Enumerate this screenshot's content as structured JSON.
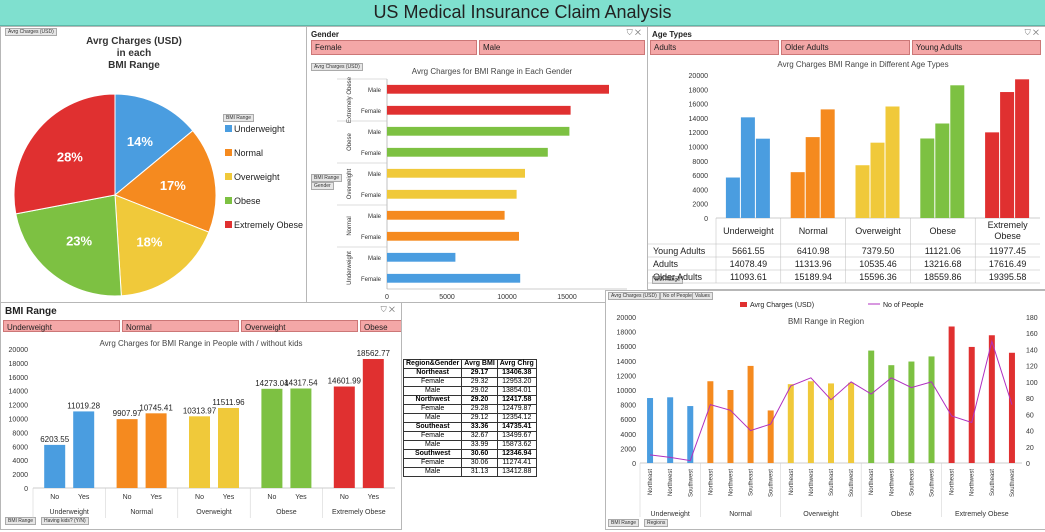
{
  "title": "US Medical Insurance Claim Analysis",
  "colors": {
    "underweight": "#4a9de0",
    "normal": "#f58a1f",
    "overweight": "#f0c93a",
    "obese": "#7dc142",
    "extremely_obese": "#e03030",
    "line": "#b030c0"
  },
  "tags": {
    "pie": "Avrg Charges (USD)",
    "pie_slicer": "BMI Range",
    "gender_chart": "Avrg Charges (USD)",
    "gender_bmi": "BMI Range",
    "gender_g": "Gender",
    "age_chart": "Avrg Charges (USD)",
    "age_bmi": "BMI Range",
    "kids_bmi": "BMI Range",
    "kids_field": "Having kids? (Y/N)",
    "region_a": "Avrg Charges (USD)",
    "region_b": "No of People",
    "region_c": "Values",
    "region_bmi": "BMI Range",
    "region_reg": "Regions"
  },
  "gender_slicer": {
    "header": "Gender",
    "items": [
      "Female",
      "Male"
    ]
  },
  "age_slicer": {
    "header": "Age Types",
    "items": [
      "Adults",
      "Older Adults",
      "Young Adults"
    ]
  },
  "bmi_slicer": {
    "header": "BMI Range",
    "items": [
      "Underweight",
      "Normal",
      "Overweight",
      "Obese",
      "Extremely Obese"
    ]
  },
  "region_table": {
    "headers": [
      "Region&Gender",
      "Avrg BMI",
      "Avrg Chrg"
    ],
    "rows": [
      {
        "label": "Northeast",
        "bmi": "29.17",
        "chrg": "13406.38",
        "group": true
      },
      {
        "label": "Female",
        "bmi": "29.32",
        "chrg": "12953.20",
        "group": false
      },
      {
        "label": "Male",
        "bmi": "29.02",
        "chrg": "13854.01",
        "group": false
      },
      {
        "label": "Northwest",
        "bmi": "29.20",
        "chrg": "12417.58",
        "group": true
      },
      {
        "label": "Female",
        "bmi": "29.28",
        "chrg": "12479.87",
        "group": false
      },
      {
        "label": "Male",
        "bmi": "29.12",
        "chrg": "12354.12",
        "group": false
      },
      {
        "label": "Southeast",
        "bmi": "33.36",
        "chrg": "14735.41",
        "group": true
      },
      {
        "label": "Female",
        "bmi": "32.67",
        "chrg": "13499.67",
        "group": false
      },
      {
        "label": "Male",
        "bmi": "33.99",
        "chrg": "15873.62",
        "group": false
      },
      {
        "label": "Southwest",
        "bmi": "30.60",
        "chrg": "12346.94",
        "group": true
      },
      {
        "label": "Female",
        "bmi": "30.06",
        "chrg": "11274.41",
        "group": false
      },
      {
        "label": "Male",
        "bmi": "31.13",
        "chrg": "13412.88",
        "group": false
      }
    ]
  },
  "chart_data": [
    {
      "id": "pie",
      "type": "pie",
      "title": "Avrg Charges (USD)\nin each\nBMI Range",
      "categories": [
        "Underweight",
        "Normal",
        "Overweight",
        "Obese",
        "Extremely Obese"
      ],
      "values": [
        14,
        17,
        18,
        23,
        28
      ],
      "labels": [
        "14%",
        "17%",
        "18%",
        "23%",
        "28%"
      ],
      "legend": "right"
    },
    {
      "id": "gender",
      "type": "bar",
      "orientation": "horizontal",
      "title": "Avrg Charges for BMI Range in Each Gender",
      "groups": [
        "Extremely Obese",
        "Obese",
        "Overweight",
        "Normal",
        "Underweight"
      ],
      "rows": [
        {
          "group": "Extremely Obese",
          "label": "Male",
          "value": 18500
        },
        {
          "group": "Extremely Obese",
          "label": "Female",
          "value": 15300
        },
        {
          "group": "Obese",
          "label": "Male",
          "value": 15200
        },
        {
          "group": "Obese",
          "label": "Female",
          "value": 13400
        },
        {
          "group": "Overweight",
          "label": "Male",
          "value": 11500
        },
        {
          "group": "Overweight",
          "label": "Female",
          "value": 10800
        },
        {
          "group": "Normal",
          "label": "Male",
          "value": 9800
        },
        {
          "group": "Normal",
          "label": "Female",
          "value": 11000
        },
        {
          "group": "Underweight",
          "label": "Male",
          "value": 5700
        },
        {
          "group": "Underweight",
          "label": "Female",
          "value": 11100
        }
      ],
      "xticks": [
        "0",
        "5000",
        "10000",
        "15000"
      ],
      "xlim": [
        0,
        20000
      ]
    },
    {
      "id": "age",
      "type": "bar",
      "title": "Avrg Charges BMI Range in Different Age Types",
      "categories": [
        "Underweight",
        "Normal",
        "Overweight",
        "Obese",
        "Extremely Obese"
      ],
      "series": [
        {
          "name": "Young Adults",
          "values": [
            5661.55,
            6410.98,
            7379.5,
            11121.06,
            11977.45
          ],
          "labels": [
            "5661.55",
            "6410.98",
            "7379.50",
            "11121.06",
            "11977.45"
          ]
        },
        {
          "name": "Adults",
          "values": [
            14078.49,
            11313.96,
            10535.46,
            13216.68,
            17616.49
          ],
          "labels": [
            "14078.49",
            "11313.96",
            "10535.46",
            "13216.68",
            "17616.49"
          ]
        },
        {
          "name": "Older Adults",
          "values": [
            11093.61,
            15189.94,
            15596.36,
            18559.86,
            19395.58
          ],
          "labels": [
            "11093.61",
            "15189.94",
            "15596.36",
            "18559.86",
            "19395.58"
          ]
        }
      ],
      "yticks": [
        "0",
        "2000",
        "4000",
        "6000",
        "8000",
        "10000",
        "12000",
        "14000",
        "16000",
        "18000",
        "20000"
      ],
      "ylim": [
        0,
        20000
      ]
    },
    {
      "id": "kids",
      "type": "bar",
      "title": "Avrg Charges for BMI Range in People with / without kids",
      "categories": [
        "Underweight",
        "Normal",
        "Overweight",
        "Obese",
        "Extremely Obese"
      ],
      "sub": [
        "No",
        "Yes"
      ],
      "values": [
        [
          6203.55,
          11019.28
        ],
        [
          9907.97,
          10745.41
        ],
        [
          10313.97,
          11511.96
        ],
        [
          14273.04,
          14317.54
        ],
        [
          14601.99,
          18562.77
        ]
      ],
      "labels": [
        [
          "6203.55",
          "11019.28"
        ],
        [
          "9907.97",
          "10745.41"
        ],
        [
          "10313.97",
          "11511.96"
        ],
        [
          "14273.04",
          "14317.54"
        ],
        [
          "14601.99",
          "18562.77"
        ]
      ],
      "yticks": [
        "0",
        "2000",
        "4000",
        "6000",
        "8000",
        "10000",
        "12000",
        "14000",
        "16000",
        "18000",
        "20000"
      ],
      "ylim": [
        0,
        20000
      ]
    },
    {
      "id": "region",
      "type": "bar+line",
      "title": "BMI Range in Region",
      "legend": [
        "Avrg Charges (USD)",
        "No of People"
      ],
      "categories": [
        "Underweight",
        "Normal",
        "Overweight",
        "Obese",
        "Extremely Obese"
      ],
      "regions": [
        "Northeast",
        "Northwest",
        "Southwest"
      ],
      "regions_full": [
        "Northeast",
        "Northwest",
        "Southeast",
        "Southwest"
      ],
      "bars": [
        {
          "cat": 0,
          "region": "Northeast",
          "value": 8900,
          "people": 10
        },
        {
          "cat": 0,
          "region": "Northwest",
          "value": 9000,
          "people": 7
        },
        {
          "cat": 0,
          "region": "Southwest",
          "value": 7800,
          "people": 3
        },
        {
          "cat": 1,
          "region": "Northeast",
          "value": 11200,
          "people": 72
        },
        {
          "cat": 1,
          "region": "Northwest",
          "value": 10000,
          "people": 65
        },
        {
          "cat": 1,
          "region": "Southeast",
          "value": 13300,
          "people": 40
        },
        {
          "cat": 1,
          "region": "Southwest",
          "value": 7200,
          "people": 48
        },
        {
          "cat": 2,
          "region": "Northeast",
          "value": 10800,
          "people": 95
        },
        {
          "cat": 2,
          "region": "Northwest",
          "value": 11200,
          "people": 105
        },
        {
          "cat": 2,
          "region": "Southeast",
          "value": 10900,
          "people": 78
        },
        {
          "cat": 2,
          "region": "Southwest",
          "value": 11000,
          "people": 100
        },
        {
          "cat": 3,
          "region": "Northeast",
          "value": 15400,
          "people": 85
        },
        {
          "cat": 3,
          "region": "Northwest",
          "value": 13400,
          "people": 105
        },
        {
          "cat": 3,
          "region": "Southeast",
          "value": 13900,
          "people": 93
        },
        {
          "cat": 3,
          "region": "Southwest",
          "value": 14600,
          "people": 100
        },
        {
          "cat": 4,
          "region": "Northeast",
          "value": 18700,
          "people": 58
        },
        {
          "cat": 4,
          "region": "Northwest",
          "value": 15900,
          "people": 50
        },
        {
          "cat": 4,
          "region": "Southeast",
          "value": 17500,
          "people": 150
        },
        {
          "cat": 4,
          "region": "Southwest",
          "value": 15100,
          "people": 72
        }
      ],
      "yticks": [
        "0",
        "2000",
        "4000",
        "6000",
        "8000",
        "10000",
        "12000",
        "14000",
        "16000",
        "18000",
        "20000"
      ],
      "y2ticks": [
        "0",
        "20",
        "40",
        "60",
        "80",
        "100",
        "120",
        "140",
        "160",
        "180"
      ],
      "ylim": [
        0,
        20000
      ],
      "y2lim": [
        0,
        180
      ]
    }
  ]
}
